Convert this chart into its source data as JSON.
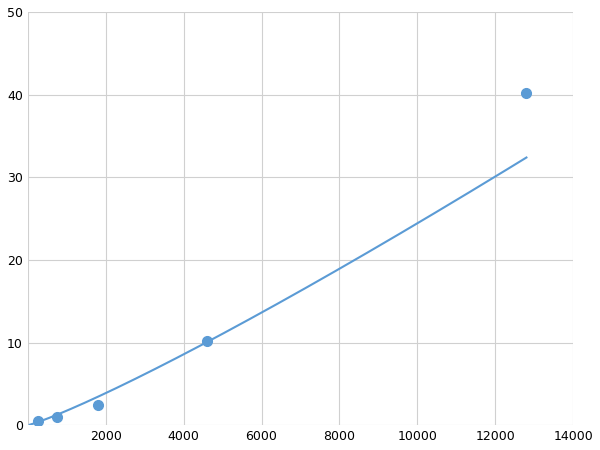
{
  "x_points": [
    250,
    750,
    1800,
    4600,
    12800
  ],
  "y_points": [
    0.5,
    1.0,
    2.5,
    10.2,
    40.2
  ],
  "x_ticks": [
    0,
    2000,
    4000,
    6000,
    8000,
    10000,
    12000,
    14000
  ],
  "x_tick_labels": [
    "",
    "2000",
    "4000",
    "6000",
    "8000",
    "10000",
    "12000",
    "14000"
  ],
  "y_ticks": [
    0,
    10,
    20,
    30,
    40,
    50
  ],
  "xlim": [
    0,
    14000
  ],
  "ylim": [
    0,
    50
  ],
  "line_color": "#5b9bd5",
  "marker_color": "#5b9bd5",
  "bg_color": "#ffffff",
  "grid_color": "#d0d0d0",
  "marker_size": 7,
  "line_width": 1.5,
  "figsize": [
    6.0,
    4.5
  ],
  "dpi": 100
}
